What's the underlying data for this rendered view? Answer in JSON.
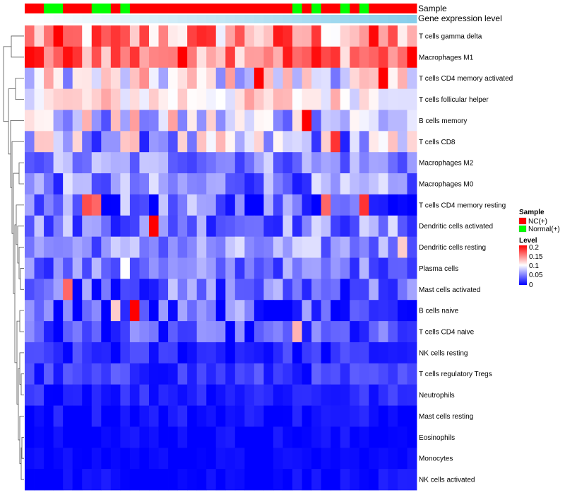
{
  "chart_data": {
    "type": "heatmap",
    "title": "",
    "rows": [
      "T cells gamma delta",
      "Macrophages M1",
      "T cells CD4 memory activated",
      "T cells follicular helper",
      "B cells memory",
      "T cells CD8",
      "Macrophages M2",
      "Macrophages M0",
      "T cells CD4 memory resting",
      "Dendritic cells activated",
      "Dendritic cells resting",
      "Plasma cells",
      "Mast cells activated",
      "B cells naive",
      "T cells CD4 naive",
      "NK cells resting",
      "T cells regulatory  Tregs",
      "Neutrophils",
      "Mast cells resting",
      "Eosinophils",
      "Monocytes",
      "NK cells activated"
    ],
    "n_columns": 41,
    "sample_groups": [
      "NC",
      "NC",
      "N",
      "N",
      "NC",
      "NC",
      "NC",
      "N",
      "N",
      "NC",
      "N",
      "NC",
      "NC",
      "NC",
      "NC",
      "NC",
      "NC",
      "NC",
      "NC",
      "NC",
      "NC",
      "NC",
      "NC",
      "NC",
      "NC",
      "NC",
      "NC",
      "NC",
      "N",
      "NC",
      "N",
      "NC",
      "NC",
      "N",
      "NC",
      "N",
      "NC",
      "NC",
      "NC",
      "NC",
      "NC"
    ],
    "color_scale": {
      "min": 0,
      "max": 0.2,
      "low": "#0000ff",
      "mid": "#ffffff",
      "high": "#ff0000"
    },
    "annotation_tracks": [
      "Sample",
      "Gene expression level"
    ],
    "legend": {
      "sample_title": "Sample",
      "sample_entries": [
        {
          "label": "NC(+)",
          "color": "#ff0000"
        },
        {
          "label": "Normal(+)",
          "color": "#00ff00"
        }
      ],
      "level_title": "Level",
      "level_ticks": [
        "0.2",
        "0.15",
        "0.1",
        "0.05",
        "0"
      ]
    },
    "row_bases": [
      0.14,
      0.16,
      0.095,
      0.11,
      0.08,
      0.07,
      0.055,
      0.05,
      0.035,
      0.05,
      0.055,
      0.045,
      0.04,
      0.025,
      0.025,
      0.015,
      0.02,
      0.015,
      0.005,
      0.003,
      0.002,
      0.003
    ],
    "row_spreads": [
      0.06,
      0.05,
      0.05,
      0.03,
      0.06,
      0.06,
      0.035,
      0.04,
      0.05,
      0.04,
      0.035,
      0.03,
      0.04,
      0.05,
      0.035,
      0.02,
      0.02,
      0.015,
      0.015,
      0.01,
      0.006,
      0.01
    ],
    "highlights": [
      {
        "row": 9,
        "col": 13,
        "value": 0.2
      },
      {
        "row": 13,
        "col": 11,
        "value": 0.2
      },
      {
        "row": 13,
        "col": 9,
        "value": 0.12
      },
      {
        "row": 4,
        "col": 29,
        "value": 0.2
      },
      {
        "row": 5,
        "col": 32,
        "value": 0.18
      },
      {
        "row": 8,
        "col": 6,
        "value": 0.17
      },
      {
        "row": 8,
        "col": 7,
        "value": 0.16
      },
      {
        "row": 8,
        "col": 31,
        "value": 0.16
      },
      {
        "row": 8,
        "col": 35,
        "value": 0.18
      },
      {
        "row": 12,
        "col": 4,
        "value": 0.16
      },
      {
        "row": 2,
        "col": 24,
        "value": 0.2
      },
      {
        "row": 2,
        "col": 37,
        "value": 0.2
      },
      {
        "row": 11,
        "col": 10,
        "value": 0.1
      },
      {
        "row": 14,
        "col": 28,
        "value": 0.13
      },
      {
        "row": 10,
        "col": 39,
        "value": 0.12
      }
    ]
  }
}
